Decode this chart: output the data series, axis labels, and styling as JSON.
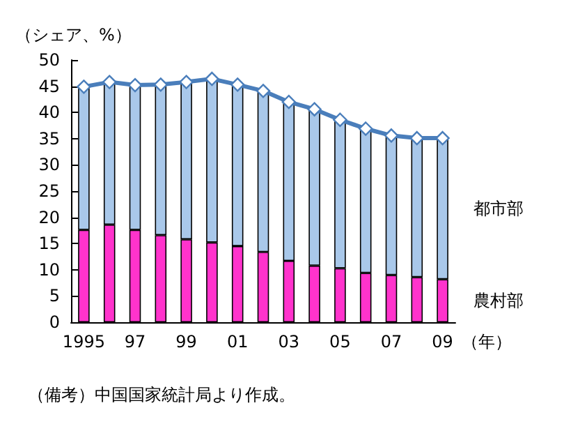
{
  "chart_data": {
    "type": "bar",
    "stacked": true,
    "ylabel": "（シェア、%）",
    "xlabel": "（年）",
    "annotations": [
      "（備考）中国国家統計局より作成。"
    ],
    "categories": [
      "1995",
      null,
      "97",
      null,
      "99",
      null,
      "01",
      null,
      "03",
      null,
      "05",
      null,
      "07",
      null,
      "09"
    ],
    "series": [
      {
        "name": "農村部",
        "color": "#ff33cc",
        "values": [
          17.6,
          18.6,
          17.6,
          16.6,
          15.8,
          15.2,
          14.5,
          13.4,
          11.7,
          10.8,
          10.3,
          9.4,
          9.0,
          8.6,
          8.2
        ]
      },
      {
        "name": "都市部",
        "color": "#a9c8ea",
        "values": [
          27.3,
          27.2,
          27.6,
          28.7,
          30.0,
          31.2,
          30.8,
          30.7,
          30.3,
          29.8,
          28.3,
          27.5,
          26.6,
          26.5,
          26.9
        ]
      },
      {
        "type": "line",
        "color": "#4a7ebb",
        "marker": "diamond",
        "values": [
          44.9,
          45.8,
          45.2,
          45.3,
          45.8,
          46.4,
          45.3,
          44.1,
          42.0,
          40.6,
          38.6,
          36.9,
          35.6,
          35.1,
          35.1
        ]
      }
    ],
    "ylim": [
      0,
      50
    ],
    "yticks": [
      0,
      5,
      10,
      15,
      20,
      25,
      30,
      35,
      40,
      45,
      50
    ],
    "grid": false,
    "legend": false
  }
}
